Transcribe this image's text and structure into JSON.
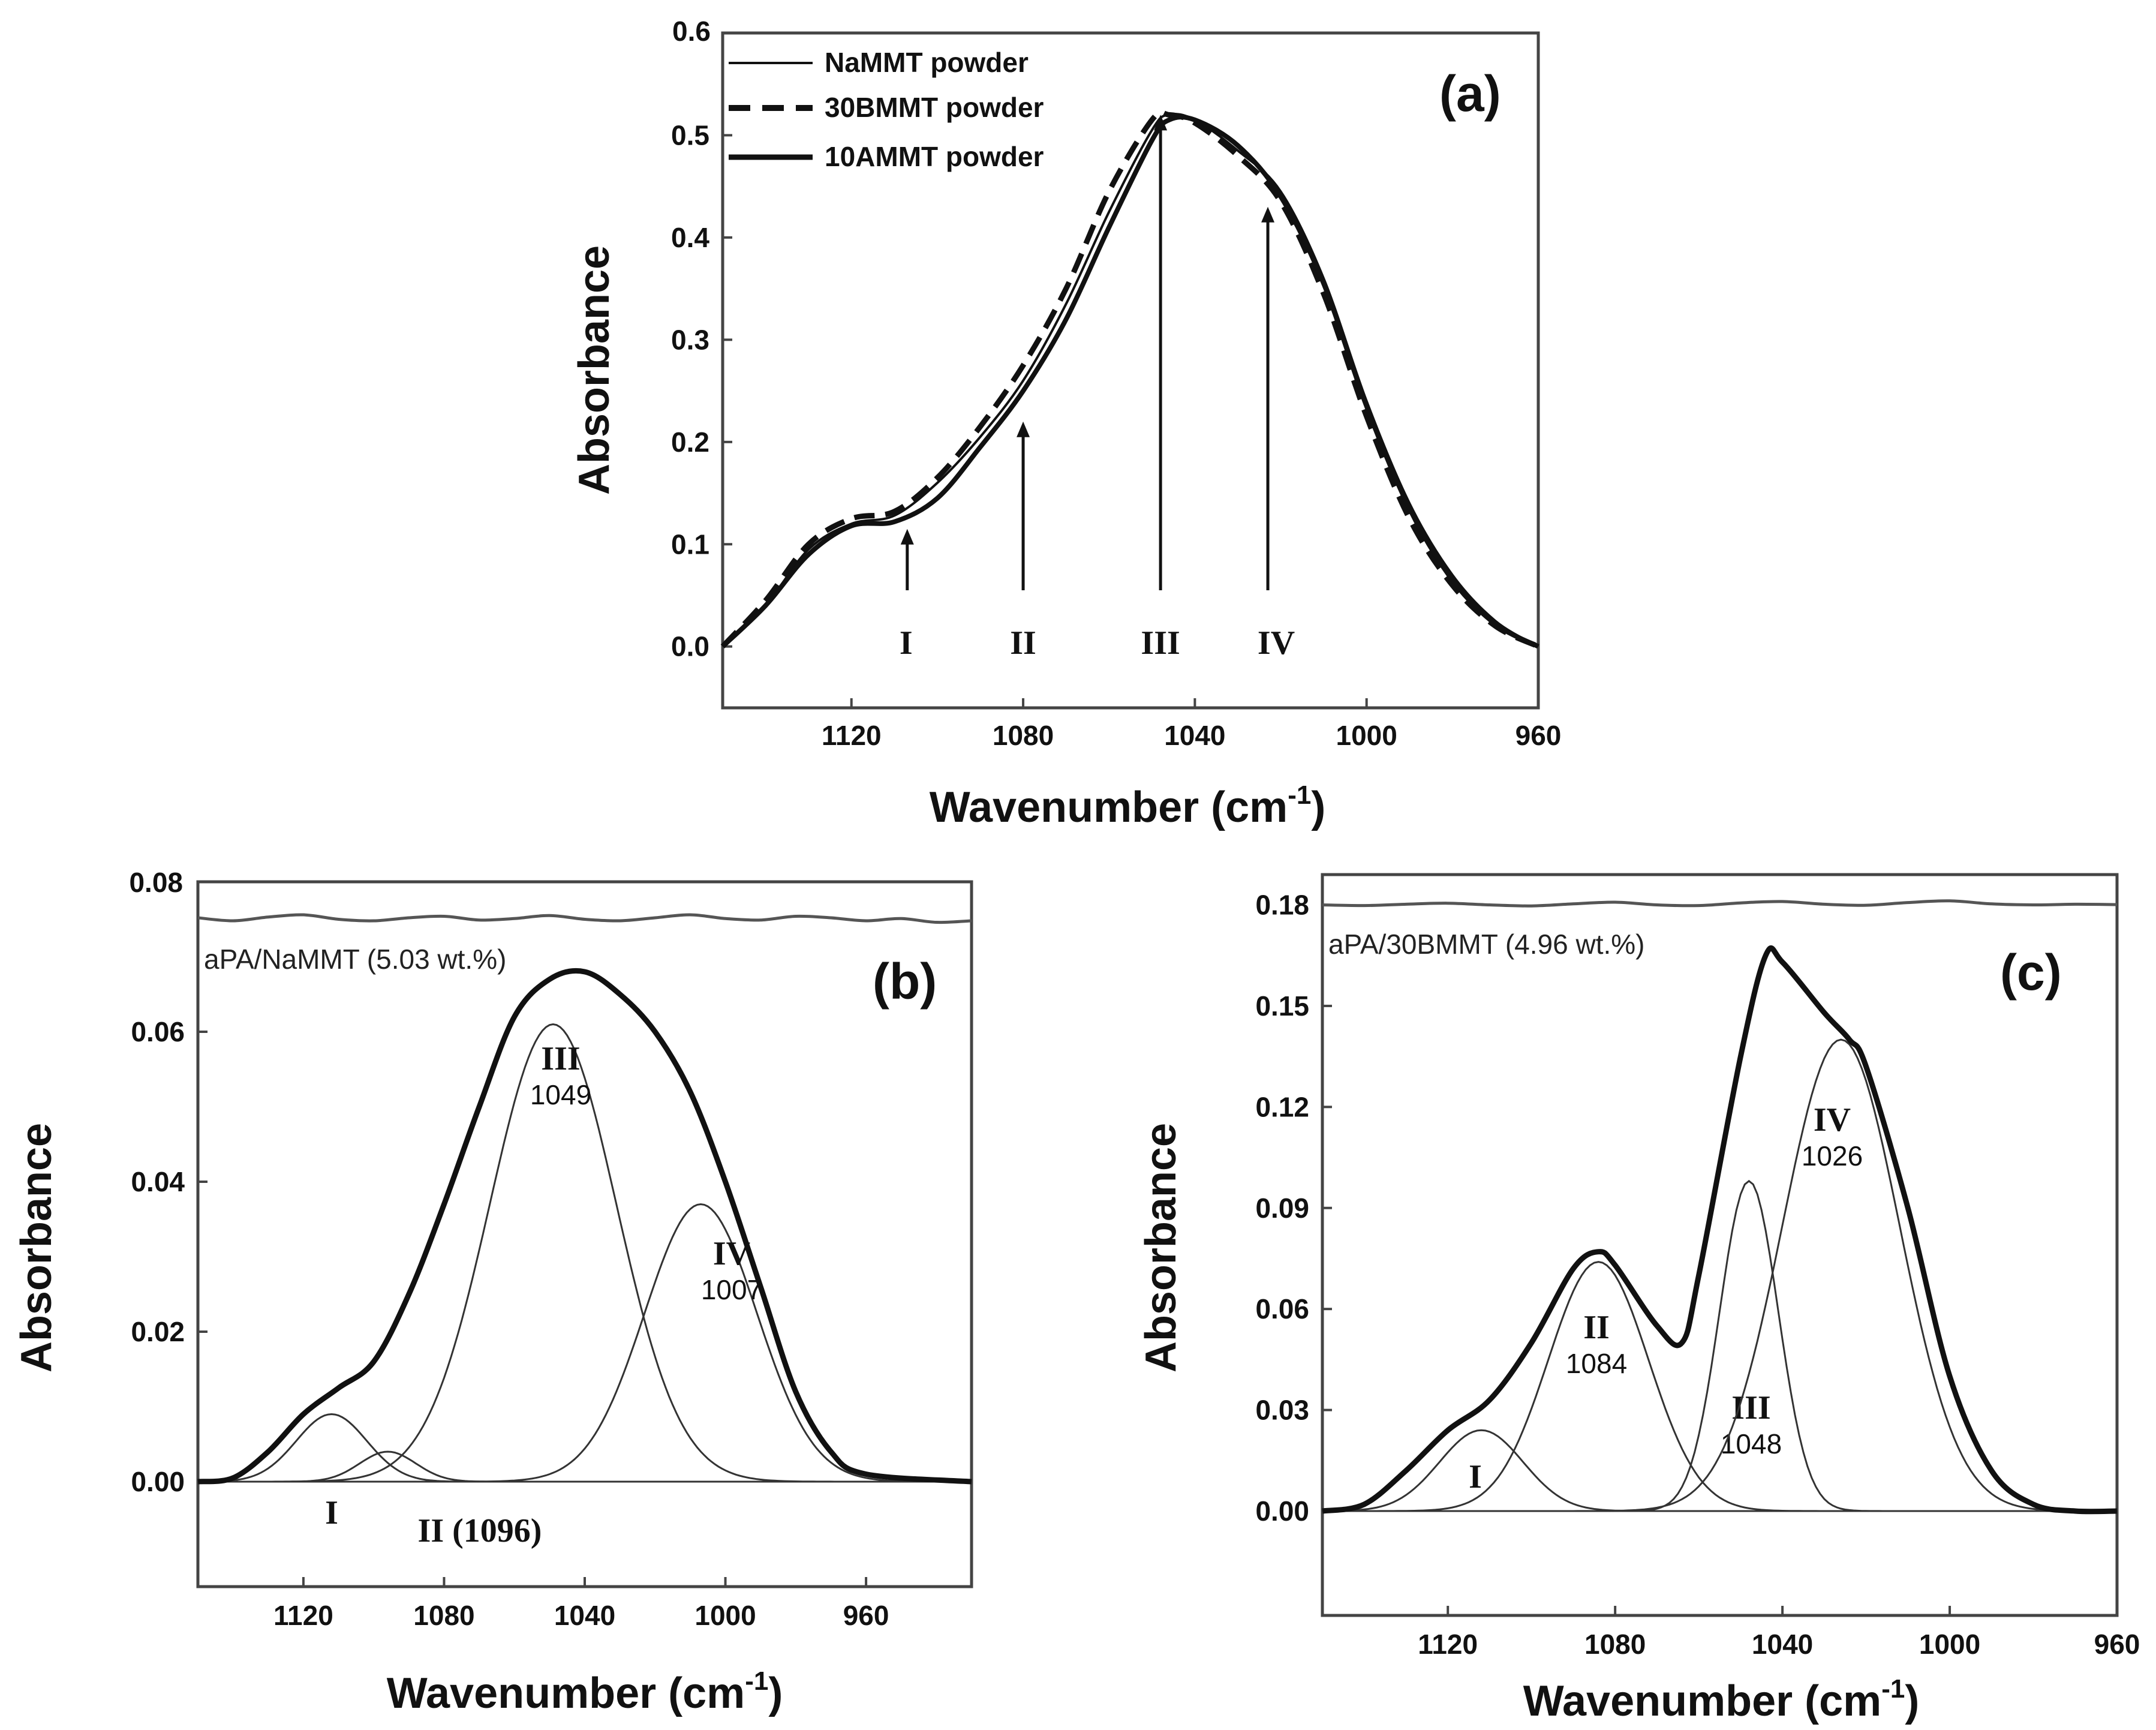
{
  "chart_data": [
    {
      "panel": "(a)",
      "type": "line",
      "xlabel": "Wavenumber (cm",
      "xlabel_sup": "-1",
      "xlabel_close": ")",
      "ylabel": "Absorbance",
      "xlim": [
        1150,
        960
      ],
      "ylim": [
        -0.06,
        0.6
      ],
      "xticks": [
        1120,
        1080,
        1040,
        1000,
        960
      ],
      "yticks": [
        0.0,
        0.1,
        0.2,
        0.3,
        0.4,
        0.5
      ],
      "ytick_labels": [
        "0.0",
        "0.1",
        "0.2",
        "0.3",
        "0.4",
        "0.5"
      ],
      "ymax_label": "0.6",
      "legend_position": "top-left",
      "series": [
        {
          "name": "NaMMT powder",
          "style": "thin",
          "x": [
            1150,
            1140,
            1130,
            1120,
            1110,
            1100,
            1090,
            1080,
            1070,
            1060,
            1050,
            1046,
            1040,
            1030,
            1020,
            1010,
            1000,
            990,
            980,
            970,
            960
          ],
          "y": [
            0.0,
            0.04,
            0.095,
            0.12,
            0.128,
            0.16,
            0.205,
            0.26,
            0.335,
            0.425,
            0.505,
            0.52,
            0.515,
            0.485,
            0.445,
            0.36,
            0.24,
            0.14,
            0.07,
            0.025,
            0.0
          ]
        },
        {
          "name": "30BMMT powder",
          "style": "dashed",
          "x": [
            1150,
            1140,
            1130,
            1120,
            1110,
            1100,
            1090,
            1080,
            1070,
            1060,
            1050,
            1046,
            1040,
            1030,
            1020,
            1010,
            1000,
            990,
            980,
            970,
            960
          ],
          "y": [
            0.0,
            0.045,
            0.1,
            0.125,
            0.132,
            0.165,
            0.215,
            0.275,
            0.35,
            0.445,
            0.515,
            0.52,
            0.512,
            0.48,
            0.435,
            0.345,
            0.225,
            0.125,
            0.06,
            0.02,
            0.0
          ]
        },
        {
          "name": "10AMMT powder",
          "style": "thick",
          "x": [
            1150,
            1140,
            1130,
            1120,
            1110,
            1100,
            1090,
            1080,
            1070,
            1060,
            1050,
            1046,
            1040,
            1030,
            1020,
            1010,
            1000,
            990,
            980,
            970,
            960
          ],
          "y": [
            0.0,
            0.04,
            0.09,
            0.118,
            0.122,
            0.145,
            0.195,
            0.25,
            0.32,
            0.41,
            0.495,
            0.515,
            0.515,
            0.49,
            0.44,
            0.355,
            0.235,
            0.135,
            0.065,
            0.022,
            0.0
          ]
        }
      ],
      "annotations": [
        {
          "label": "I",
          "x": 1107,
          "y_tail": 0.055,
          "y_head": 0.115
        },
        {
          "label": "II",
          "x": 1080,
          "y_tail": 0.055,
          "y_head": 0.22
        },
        {
          "label": "III",
          "x": 1048,
          "y_tail": 0.055,
          "y_head": 0.52
        },
        {
          "label": "IV",
          "x": 1023,
          "y_tail": 0.055,
          "y_head": 0.43
        }
      ]
    },
    {
      "panel": "(b)",
      "type": "line",
      "xlabel": "Wavenumber (cm",
      "xlabel_sup": "-1",
      "xlabel_close": ")",
      "ylabel": "Absorbance",
      "xlim": [
        1150,
        930
      ],
      "ylim": [
        -0.014,
        0.08
      ],
      "xticks": [
        1120,
        1080,
        1040,
        1000,
        960
      ],
      "yticks": [
        0.0,
        0.02,
        0.04,
        0.06
      ],
      "ytick_labels": [
        "0.00",
        "0.02",
        "0.04",
        "0.06"
      ],
      "ymax_label": "0.08",
      "sample": "aPA/NaMMT (5.03 wt.%)",
      "baseline": {
        "x": [
          1150,
          1140,
          1130,
          1120,
          1110,
          1100,
          1090,
          1080,
          1070,
          1060,
          1050,
          1040,
          1030,
          1020,
          1010,
          1000,
          990,
          980,
          970,
          960,
          950,
          940,
          930
        ],
        "y": [
          0.0752,
          0.0748,
          0.0753,
          0.0756,
          0.075,
          0.0748,
          0.0752,
          0.0754,
          0.0749,
          0.0751,
          0.0755,
          0.075,
          0.0748,
          0.0752,
          0.0756,
          0.0751,
          0.0749,
          0.0754,
          0.0752,
          0.0748,
          0.0751,
          0.0746,
          0.0748
        ]
      },
      "envelope": {
        "x": [
          1140,
          1130,
          1120,
          1110,
          1100,
          1090,
          1080,
          1070,
          1060,
          1050,
          1040,
          1030,
          1020,
          1010,
          1000,
          990,
          980,
          970,
          960
        ],
        "y": [
          0.0005,
          0.004,
          0.009,
          0.0125,
          0.016,
          0.025,
          0.037,
          0.05,
          0.062,
          0.067,
          0.068,
          0.065,
          0.06,
          0.052,
          0.04,
          0.026,
          0.012,
          0.004,
          0.001
        ]
      },
      "components": [
        {
          "label": "I",
          "value": "",
          "center": 1112,
          "height": 0.009,
          "sigma": 10
        },
        {
          "label": "II (1096)",
          "value": "",
          "center": 1096,
          "height": 0.004,
          "sigma": 8
        },
        {
          "label": "III",
          "value": "1049",
          "center": 1049,
          "height": 0.061,
          "sigma": 18
        },
        {
          "label": "IV",
          "value": "1007",
          "center": 1007,
          "height": 0.037,
          "sigma": 16
        }
      ]
    },
    {
      "panel": "(c)",
      "type": "line",
      "xlabel": "Wavenumber (cm",
      "xlabel_sup": "-1",
      "xlabel_close": ")",
      "ylabel": "Absorbance",
      "xlim": [
        1150,
        960
      ],
      "ylim": [
        -0.031,
        0.189
      ],
      "xticks": [
        1120,
        1080,
        1040,
        1000,
        960
      ],
      "yticks": [
        0.0,
        0.03,
        0.06,
        0.09,
        0.12,
        0.15,
        0.18
      ],
      "ytick_labels": [
        "0.00",
        "0.03",
        "0.06",
        "0.09",
        "0.12",
        "0.15",
        "0.18"
      ],
      "sample": "aPA/30BMMT (4.96 wt.%)",
      "baseline": {
        "x": [
          1150,
          1140,
          1130,
          1120,
          1110,
          1100,
          1090,
          1080,
          1070,
          1060,
          1050,
          1040,
          1030,
          1020,
          1010,
          1000,
          990,
          980,
          970,
          960
        ],
        "y": [
          0.18,
          0.1798,
          0.1802,
          0.1805,
          0.18,
          0.1797,
          0.1803,
          0.1808,
          0.18,
          0.1798,
          0.1806,
          0.181,
          0.1802,
          0.1799,
          0.1807,
          0.1812,
          0.1803,
          0.18,
          0.1802,
          0.1801
        ]
      },
      "envelope": {
        "x": [
          1140,
          1130,
          1120,
          1110,
          1100,
          1090,
          1084,
          1080,
          1070,
          1064,
          1060,
          1050,
          1044,
          1040,
          1030,
          1024,
          1020,
          1010,
          1000,
          990,
          980,
          970
        ],
        "y": [
          0.002,
          0.012,
          0.024,
          0.033,
          0.05,
          0.072,
          0.077,
          0.073,
          0.055,
          0.05,
          0.07,
          0.135,
          0.165,
          0.163,
          0.148,
          0.14,
          0.132,
          0.09,
          0.04,
          0.012,
          0.002,
          0.0
        ]
      },
      "components": [
        {
          "label": "I",
          "value": "",
          "center": 1112,
          "height": 0.024,
          "sigma": 10
        },
        {
          "label": "II",
          "value": "1084",
          "center": 1084,
          "height": 0.074,
          "sigma": 12
        },
        {
          "label": "III",
          "value": "1048",
          "center": 1048,
          "height": 0.098,
          "sigma": 7
        },
        {
          "label": "IV",
          "value": "1026",
          "center": 1026,
          "height": 0.14,
          "sigma": 14
        }
      ]
    }
  ]
}
